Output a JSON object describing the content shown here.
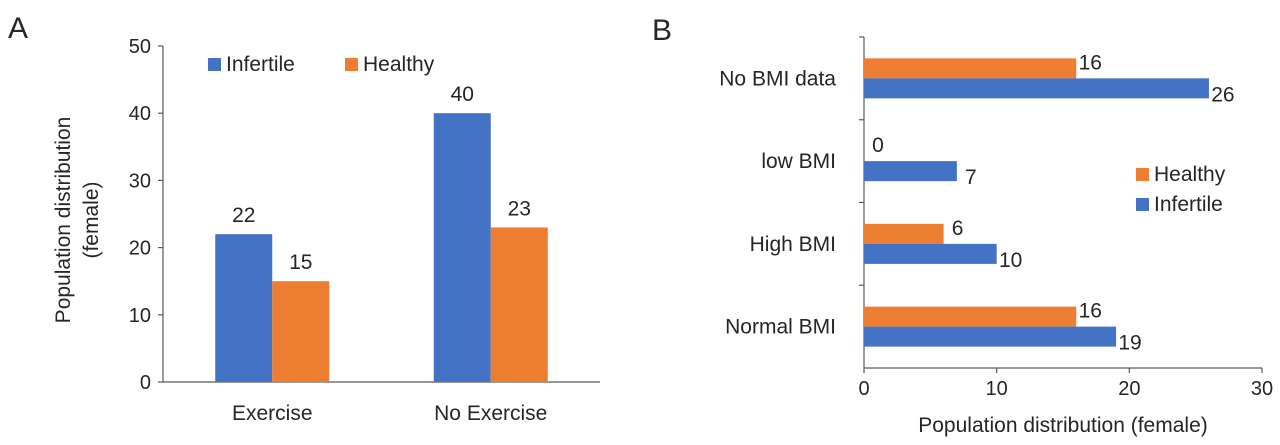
{
  "colors": {
    "infertile": "#4472C4",
    "healthy": "#ED7D31",
    "axis": "#595959",
    "text": "#262626"
  },
  "chart_data": [
    {
      "panel_label": "A",
      "type": "bar",
      "orientation": "vertical",
      "categories": [
        "Exercise",
        "No Exercise"
      ],
      "series": [
        {
          "name": "Infertile",
          "values": [
            22,
            40
          ]
        },
        {
          "name": "Healthy",
          "values": [
            15,
            23
          ]
        }
      ],
      "xlabel": "",
      "ylabel": "Population  distribution (female)",
      "ylim": [
        0,
        50
      ],
      "yticks": [
        0,
        10,
        20,
        30,
        40,
        50
      ],
      "grid": false,
      "legend": "top"
    },
    {
      "panel_label": "B",
      "type": "bar",
      "orientation": "horizontal",
      "categories": [
        "No BMI data",
        "low BMI",
        "High BMI",
        "Normal BMI"
      ],
      "series": [
        {
          "name": "Healthy",
          "values": [
            16,
            0,
            6,
            16
          ]
        },
        {
          "name": "Infertile",
          "values": [
            26,
            7,
            10,
            19
          ]
        }
      ],
      "xlabel": "Population distribution (female)",
      "ylabel": "",
      "xlim": [
        0,
        30
      ],
      "xticks": [
        0,
        10,
        20,
        30
      ],
      "grid": false,
      "legend": "right"
    }
  ]
}
